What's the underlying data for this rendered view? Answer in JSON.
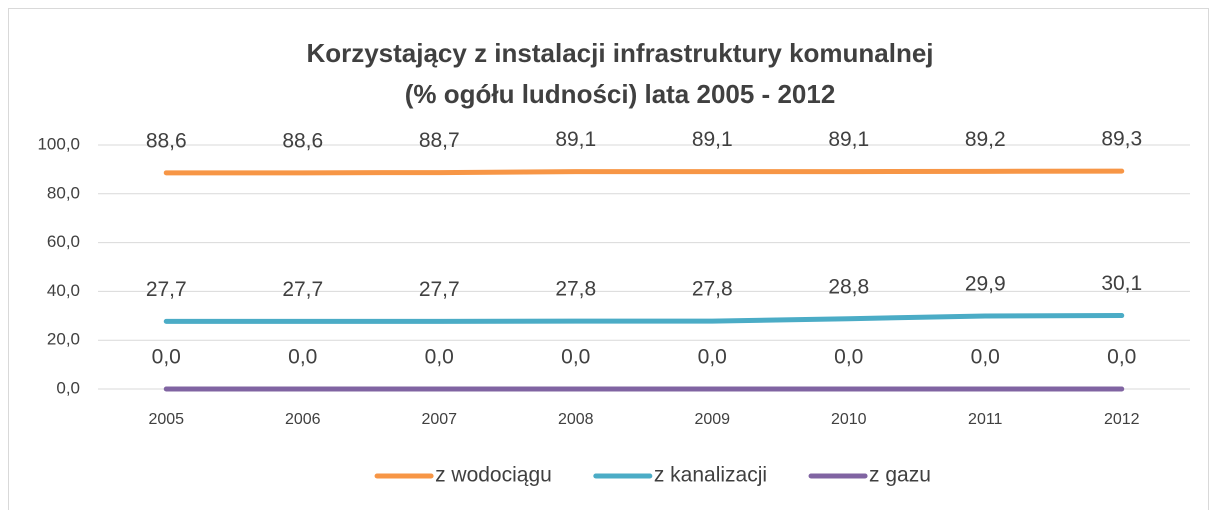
{
  "chart_data": {
    "type": "line",
    "title": "Korzystający z instalacji infrastruktury komunalnej",
    "subtitle": "(% ogółu ludności) lata 2005 - 2012",
    "categories": [
      "2005",
      "2006",
      "2007",
      "2008",
      "2009",
      "2010",
      "2011",
      "2012"
    ],
    "series": [
      {
        "name": "z wodociągu",
        "color": "#f79646",
        "values": [
          88.6,
          88.6,
          88.7,
          89.1,
          89.1,
          89.1,
          89.2,
          89.3
        ],
        "value_labels": [
          "88,6",
          "88,6",
          "88,7",
          "89,1",
          "89,1",
          "89,1",
          "89,2",
          "89,3"
        ]
      },
      {
        "name": "z kanalizacji",
        "color": "#4bacc6",
        "values": [
          27.7,
          27.7,
          27.7,
          27.8,
          27.8,
          28.8,
          29.9,
          30.1
        ],
        "value_labels": [
          "27,7",
          "27,7",
          "27,7",
          "27,8",
          "27,8",
          "28,8",
          "29,9",
          "30,1"
        ]
      },
      {
        "name": "z gazu",
        "color": "#8064a2",
        "values": [
          0,
          0,
          0,
          0,
          0,
          0,
          0,
          0
        ],
        "value_labels": [
          "0,0",
          "0,0",
          "0,0",
          "0,0",
          "0,0",
          "0,0",
          "0,0",
          "0,0"
        ]
      }
    ],
    "ylim": [
      0,
      100
    ],
    "yticks": [
      {
        "value": 0,
        "label": "0,0"
      },
      {
        "value": 20,
        "label": "20,0"
      },
      {
        "value": 40,
        "label": "40,0"
      },
      {
        "value": 60,
        "label": "60,0"
      },
      {
        "value": 80,
        "label": "80,0"
      },
      {
        "value": 100,
        "label": "100,0"
      }
    ],
    "grid": true,
    "legend": "bottom"
  }
}
